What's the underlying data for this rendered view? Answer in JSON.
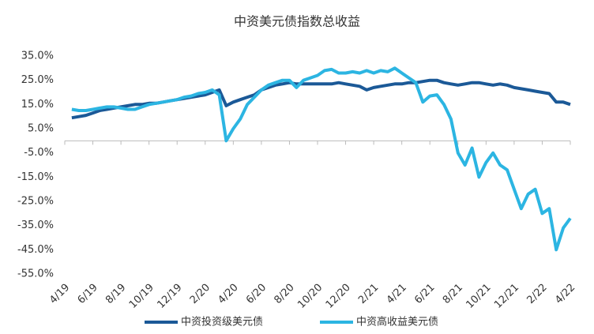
{
  "chart_data": {
    "type": "line",
    "title": "中资美元债指数总收益",
    "categories": [
      "4/19",
      null,
      null,
      null,
      "6/19",
      null,
      null,
      null,
      "8/19",
      null,
      null,
      null,
      "10/19",
      null,
      null,
      null,
      "12/19",
      null,
      null,
      null,
      "2/20",
      null,
      null,
      null,
      "4/20",
      null,
      null,
      null,
      "6/20",
      null,
      null,
      null,
      "8/20",
      null,
      null,
      null,
      "10/20",
      null,
      null,
      null,
      "12/20",
      null,
      null,
      null,
      "2/21",
      null,
      null,
      null,
      "4/21",
      null,
      null,
      null,
      "6/21",
      null,
      null,
      null,
      "8/21",
      null,
      null,
      null,
      "10/21",
      null,
      null,
      null,
      "12/21",
      null,
      null,
      null,
      "2/22",
      null,
      null,
      null,
      "4/22"
    ],
    "series": [
      {
        "name": "中资投资级美元债",
        "color": "#1b5997",
        "values": [
          null,
          9.5,
          10,
          10.5,
          11.5,
          12.5,
          13,
          13.5,
          14,
          14.5,
          15,
          15,
          15.5,
          15.5,
          16,
          16.5,
          17,
          17.5,
          18,
          18.5,
          19,
          20,
          21,
          14.5,
          16,
          17,
          18,
          19,
          21,
          22,
          23,
          23.5,
          24,
          23.5,
          23.5,
          23.5,
          23.5,
          23.5,
          23.5,
          24,
          23.5,
          23,
          22.5,
          21,
          22,
          22.5,
          23,
          23.5,
          23.5,
          24,
          24,
          24.5,
          25,
          25,
          24,
          23.5,
          23,
          23.5,
          24,
          24,
          23.5,
          23,
          23.5,
          23,
          22,
          21.5,
          21,
          20.5,
          20,
          19.5,
          16,
          16,
          15
        ]
      },
      {
        "name": "中资高收益美元债",
        "color": "#2cb5e2",
        "values": [
          null,
          13,
          12.5,
          12.5,
          13,
          13.5,
          14,
          14,
          13.5,
          13,
          13,
          14,
          15,
          15.5,
          16,
          16.5,
          17,
          18,
          18.5,
          19.5,
          20,
          21,
          19,
          0,
          5,
          9,
          15,
          18,
          21,
          23,
          24,
          25,
          25,
          22,
          25,
          26,
          27,
          29,
          29.5,
          28,
          28,
          28.5,
          28,
          29,
          28,
          29,
          28.5,
          30,
          28,
          26,
          24,
          16,
          18.5,
          19,
          15,
          9,
          -5,
          -10,
          -3,
          -15,
          -9,
          -5,
          -10,
          -12,
          -20,
          -28,
          -22,
          -20,
          -30,
          -28,
          -45,
          -36,
          -32
        ]
      }
    ],
    "ylim": [
      -55,
      35
    ],
    "yticks": [
      {
        "value": 35,
        "label": "35.0%"
      },
      {
        "value": 25,
        "label": "25.0%"
      },
      {
        "value": 15,
        "label": "15.0%"
      },
      {
        "value": 5,
        "label": "5.0%"
      },
      {
        "value": -5,
        "label": "-5.0%"
      },
      {
        "value": -15,
        "label": "-15.0%"
      },
      {
        "value": -25,
        "label": "-25.0%"
      },
      {
        "value": -35,
        "label": "-35.0%"
      },
      {
        "value": -45,
        "label": "-45.0%"
      },
      {
        "value": -55,
        "label": "-55.0%"
      }
    ],
    "grid": false,
    "legend": "bottom"
  }
}
